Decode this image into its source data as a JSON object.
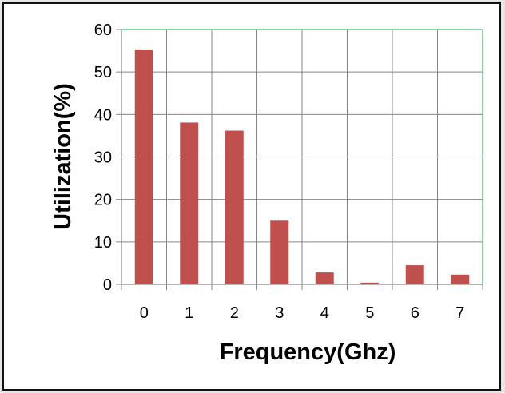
{
  "chart_data": {
    "type": "bar",
    "categories": [
      "0",
      "1",
      "2",
      "3",
      "4",
      "5",
      "6",
      "7"
    ],
    "values": [
      55.3,
      38.1,
      36.2,
      15.0,
      2.8,
      0.4,
      4.5,
      2.3
    ],
    "title": "",
    "xlabel": "Frequency(Ghz)",
    "ylabel": "Utilization(%)",
    "ylim": [
      0,
      60
    ],
    "yticks": [
      "0",
      "10",
      "20",
      "30",
      "40",
      "50",
      "60"
    ],
    "grid": true,
    "legend": "none",
    "colors": {
      "bar": "#c0504d",
      "grid": "#868686",
      "plot_border": "#3fb76c",
      "axis": "#868686"
    }
  }
}
